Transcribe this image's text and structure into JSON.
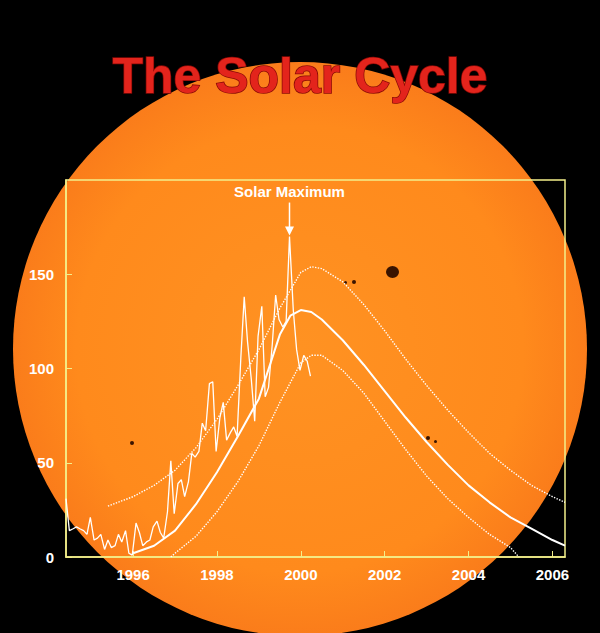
{
  "chart_data": {
    "type": "line",
    "title": "The Solar Cycle",
    "xlim": [
      1994.4,
      2006.3
    ],
    "xticks": [
      1996,
      1998,
      2000,
      2002,
      2004,
      2006
    ],
    "ylim": [
      0,
      200
    ],
    "yticks": [
      0,
      50,
      100,
      150
    ],
    "grid": false,
    "series": [
      {
        "color": "#ffffff",
        "line_style": "solid",
        "x": [
          1994.4,
          1994.48,
          1994.57,
          1994.65,
          1994.73,
          1994.82,
          1994.9,
          1994.98,
          1995.07,
          1995.15,
          1995.23,
          1995.32,
          1995.4,
          1995.48,
          1995.57,
          1995.65,
          1995.73,
          1995.82,
          1995.9,
          1995.98,
          1996.07,
          1996.15,
          1996.23,
          1996.32,
          1996.4,
          1996.48,
          1996.57,
          1996.65,
          1996.73,
          1996.82,
          1996.9,
          1996.98,
          1997.07,
          1997.15,
          1997.23,
          1997.32,
          1997.4,
          1997.48,
          1997.57,
          1997.65,
          1997.73,
          1997.82,
          1997.9,
          1997.98,
          1998.07,
          1998.15,
          1998.23,
          1998.32,
          1998.4,
          1998.48,
          1998.57,
          1998.65,
          1998.73,
          1998.82,
          1998.9,
          1998.98,
          1999.07,
          1999.15,
          1999.23,
          1999.32,
          1999.4,
          1999.48,
          1999.57,
          1999.65,
          1999.73,
          1999.82,
          1999.9,
          1999.98,
          2000.07,
          2000.15,
          2000.23
        ],
        "values": [
          31,
          14,
          15,
          16,
          15,
          14,
          12,
          21,
          9,
          10,
          12,
          4,
          9,
          5,
          6,
          12,
          8,
          14,
          2,
          1,
          18,
          13,
          6,
          8,
          9,
          16,
          19,
          13,
          10,
          24,
          51,
          23,
          39,
          41,
          32,
          40,
          55,
          53,
          56,
          71,
          67,
          92,
          93,
          56,
          74,
          82,
          62,
          66,
          69,
          64,
          106,
          138,
          114,
          94,
          72,
          117,
          133,
          85,
          90,
          113,
          139,
          126,
          122,
          125,
          170,
          131,
          110,
          99,
          107,
          104,
          96
        ]
      },
      {
        "color": "#ffffff",
        "line_style": "solid",
        "x": [
          1996.0,
          1996.5,
          1997.0,
          1997.5,
          1998.0,
          1998.5,
          1999.0,
          1999.5,
          1999.75,
          2000.0,
          2000.25,
          2000.5,
          2001.0,
          2001.5,
          2002.0,
          2002.5,
          2003.0,
          2003.5,
          2004.0,
          2004.5,
          2005.0,
          2005.5,
          2006.0,
          2006.3
        ],
        "values": [
          2,
          6,
          14,
          28,
          45,
          64,
          84,
          118,
          128,
          131,
          130,
          126,
          115,
          102,
          88,
          74,
          61,
          49,
          38,
          29,
          21,
          15,
          9,
          6
        ]
      },
      {
        "color": "#ffffff",
        "line_style": "dotted",
        "x": [
          1995.4,
          1996.0,
          1996.5,
          1997.0,
          1997.5,
          1998.0,
          1998.5,
          1999.0,
          1999.5,
          2000.0,
          2000.25,
          2000.5,
          2001.0,
          2001.5,
          2002.0,
          2002.5,
          2003.0,
          2003.5,
          2004.0,
          2004.5,
          2005.0,
          2005.5,
          2006.0,
          2006.3
        ],
        "values": [
          27,
          32,
          38,
          46,
          58,
          73,
          91,
          110,
          132,
          151,
          154,
          153,
          146,
          134,
          120,
          105,
          91,
          78,
          66,
          55,
          46,
          38,
          32,
          29
        ]
      },
      {
        "color": "#ffffff",
        "line_style": "dotted",
        "x": [
          1996.9,
          1997.0,
          1997.5,
          1998.0,
          1998.5,
          1999.0,
          1999.5,
          2000.0,
          2000.25,
          2000.5,
          2001.0,
          2001.5,
          2002.0,
          2002.5,
          2003.0,
          2003.5,
          2004.0,
          2004.5,
          2005.0,
          2005.2
        ],
        "values": [
          0,
          2,
          11,
          24,
          40,
          59,
          82,
          103,
          107,
          107,
          99,
          87,
          72,
          57,
          43,
          31,
          21,
          12,
          5,
          0
        ]
      }
    ],
    "annotations": [
      {
        "text": "Solar Maximum",
        "x": 1999.73,
        "y": 170
      }
    ]
  }
}
